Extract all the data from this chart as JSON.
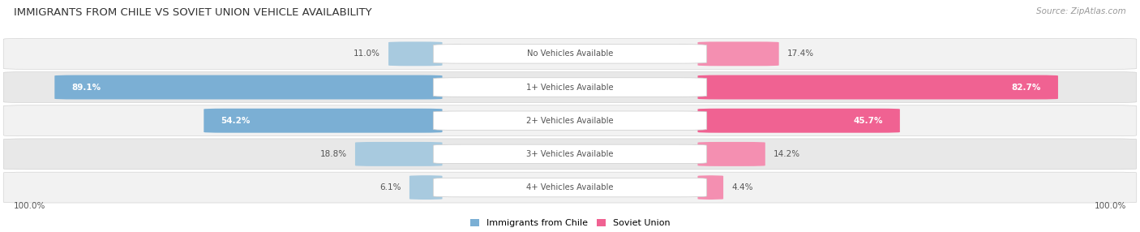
{
  "title": "IMMIGRANTS FROM CHILE VS SOVIET UNION VEHICLE AVAILABILITY",
  "source": "Source: ZipAtlas.com",
  "categories": [
    "No Vehicles Available",
    "1+ Vehicles Available",
    "2+ Vehicles Available",
    "3+ Vehicles Available",
    "4+ Vehicles Available"
  ],
  "chile_values": [
    11.0,
    89.1,
    54.2,
    18.8,
    6.1
  ],
  "soviet_values": [
    17.4,
    82.7,
    45.7,
    14.2,
    4.4
  ],
  "chile_color": "#7BAFD4",
  "chile_color_light": "#A8CADF",
  "soviet_color": "#F06292",
  "soviet_color_light": "#F48FB1",
  "row_bg_even": "#F2F2F2",
  "row_bg_odd": "#E8E8E8",
  "title_color": "#333333",
  "label_color": "#555555",
  "dark_text": "#555555",
  "max_value": 100.0,
  "figsize": [
    14.06,
    2.86
  ],
  "dpi": 100
}
